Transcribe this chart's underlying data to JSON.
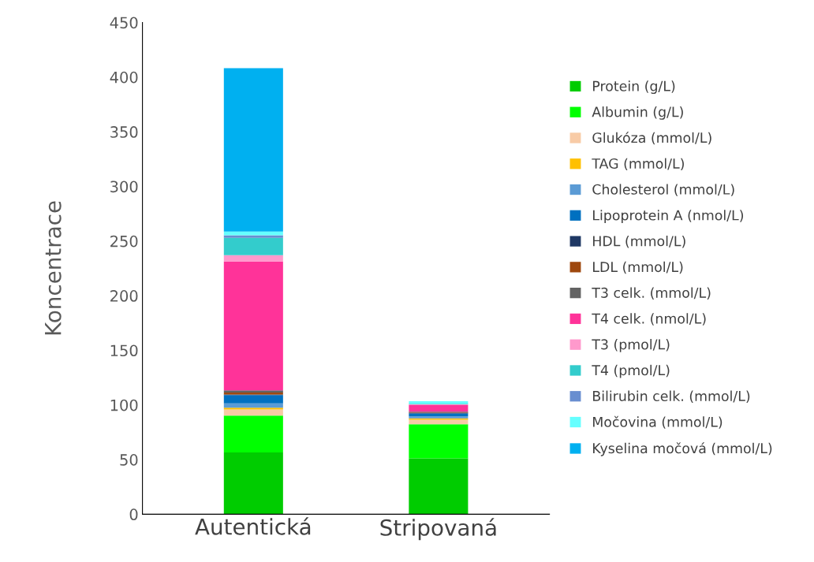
{
  "chart_data": {
    "type": "bar",
    "stacked": true,
    "ylabel": "Koncentrace",
    "categories": [
      "Autentická",
      "Stripovaná"
    ],
    "ylim": [
      0,
      450
    ],
    "yticks": [
      0,
      50,
      100,
      150,
      200,
      250,
      300,
      350,
      400,
      450
    ],
    "grid": false,
    "legend": "right",
    "series": [
      {
        "name": "Protein (g/L)",
        "color": "#00cc00",
        "values": [
          56.6,
          51.1
        ]
      },
      {
        "name": "Albumin (g/L)",
        "color": "#00ff00",
        "values": [
          33.6,
          31.2
        ]
      },
      {
        "name": "Glukóza (mmol/L)",
        "color": "#f8cba6",
        "values": [
          5.6,
          4.1
        ]
      },
      {
        "name": "TAG (mmol/L)",
        "color": "#ffc000",
        "values": [
          1.6,
          1.4
        ]
      },
      {
        "name": "Cholesterol (mmol/L)",
        "color": "#5b9bd5",
        "values": [
          4.1,
          1.7
        ]
      },
      {
        "name": "Lipoprotein A (nmol/L)",
        "color": "#0070c0",
        "values": [
          7.5,
          2.7
        ]
      },
      {
        "name": "HDL (mmol/L)",
        "color": "#1f3864",
        "values": [
          0.6,
          0.7
        ]
      },
      {
        "name": "LDL (mmol/L)",
        "color": "#9e480e",
        "values": [
          1.8,
          0.5
        ]
      },
      {
        "name": "T3 celk. (mmol/L)",
        "color": "#636363",
        "values": [
          1.9,
          0.4
        ]
      },
      {
        "name": "T4 celk. (nmol/L)",
        "color": "#ff3399",
        "values": [
          118,
          6.1
        ]
      },
      {
        "name": "T3 (pmol/L)",
        "color": "#ff99cc",
        "values": [
          5.8,
          0.7
        ]
      },
      {
        "name": "T4 (pmol/L)",
        "color": "#33cccc",
        "values": [
          15.8,
          0.4
        ]
      },
      {
        "name": "Bilirubin celk. (mmol/L)",
        "color": "#698ed0",
        "values": [
          2.4,
          null
        ]
      },
      {
        "name": "Močovina (mmol/L)",
        "color": "#66ffff",
        "values": [
          3.4,
          2.4
        ]
      },
      {
        "name": "Kyselina močová (mmol/L)",
        "color": "#00b0f0",
        "values": [
          149.5,
          null
        ]
      }
    ]
  }
}
